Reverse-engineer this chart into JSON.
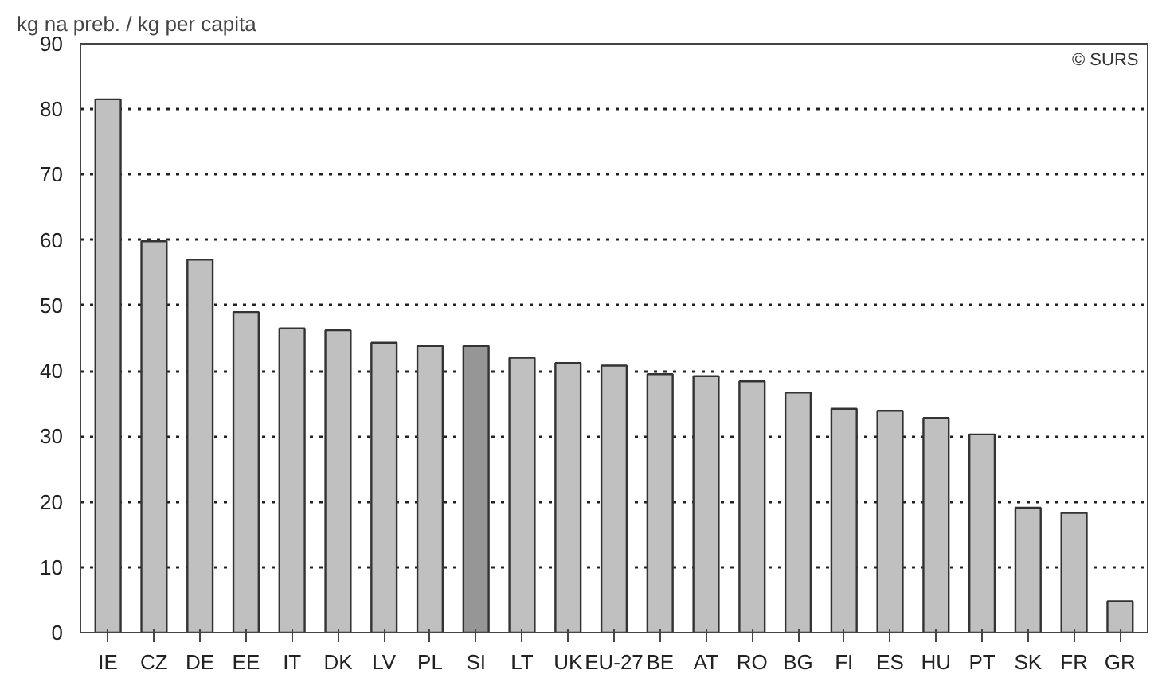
{
  "chart_data": {
    "type": "bar",
    "ylabel": "kg na preb. / kg per capita",
    "categories": [
      "IE",
      "CZ",
      "DE",
      "EE",
      "IT",
      "DK",
      "LV",
      "PL",
      "SI",
      "LT",
      "UK",
      "EU-27",
      "BE",
      "AT",
      "RO",
      "BG",
      "FI",
      "ES",
      "HU",
      "PT",
      "SK",
      "FR",
      "GR"
    ],
    "values": [
      81.5,
      59.8,
      57,
      49,
      46.5,
      46.2,
      44.3,
      43.8,
      43.8,
      42,
      41.2,
      40.8,
      39.5,
      39.2,
      38.4,
      36.7,
      34.2,
      33.9,
      32.8,
      30.3,
      19.1,
      18.3,
      4.8
    ],
    "colors": [
      "#c0c0c0",
      "#c0c0c0",
      "#c0c0c0",
      "#c0c0c0",
      "#c0c0c0",
      "#c0c0c0",
      "#c0c0c0",
      "#c0c0c0",
      "#969696",
      "#c0c0c0",
      "#c0c0c0",
      "#c0c0c0",
      "#c0c0c0",
      "#c0c0c0",
      "#c0c0c0",
      "#c0c0c0",
      "#c0c0c0",
      "#c0c0c0",
      "#c0c0c0",
      "#c0c0c0",
      "#c0c0c0",
      "#c0c0c0",
      "#c0c0c0"
    ],
    "ylim": [
      0,
      90
    ],
    "yticks": [
      0,
      10,
      20,
      30,
      40,
      50,
      60,
      70,
      80,
      90
    ],
    "grid": "y",
    "annotations": [
      "© SURS"
    ]
  }
}
